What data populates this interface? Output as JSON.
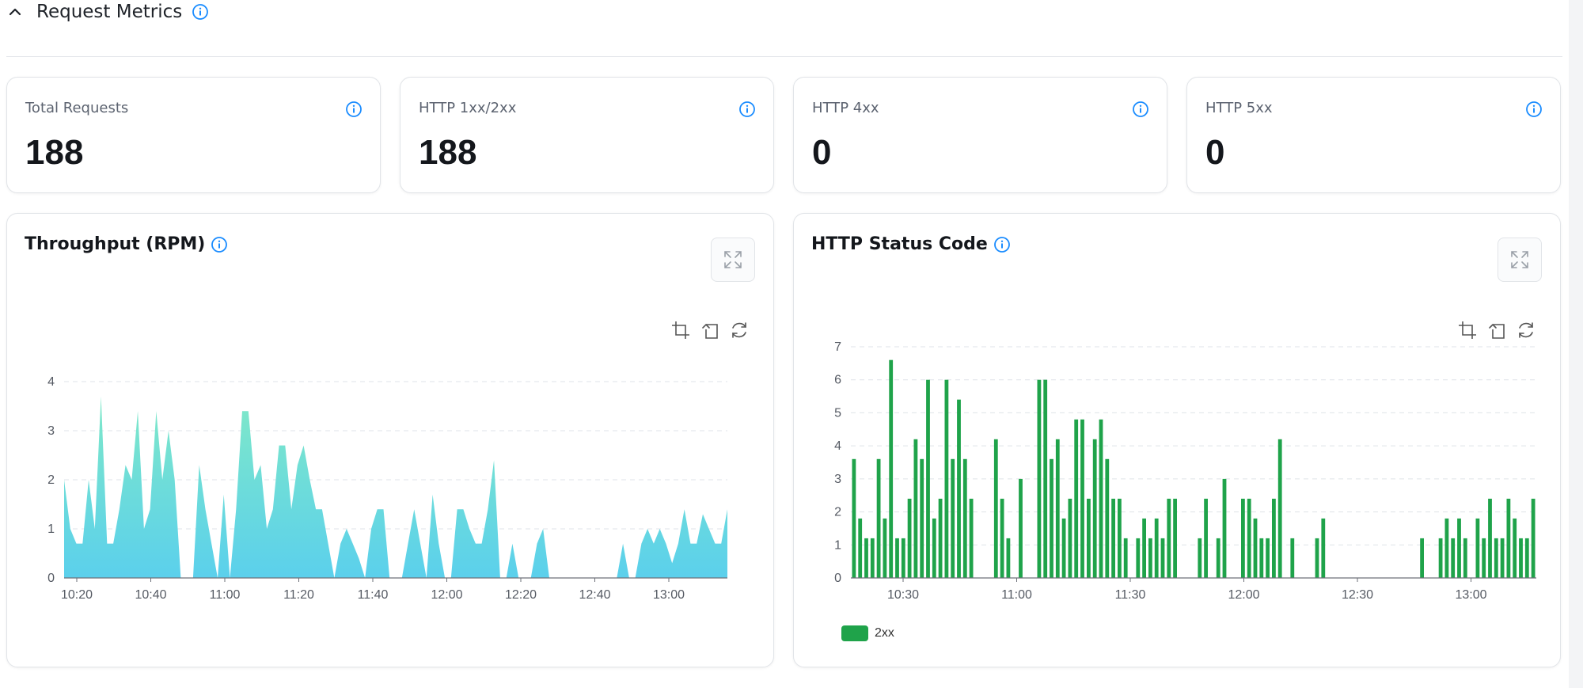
{
  "section": {
    "title": "Request Metrics"
  },
  "stats": [
    {
      "label": "Total Requests",
      "value": "188"
    },
    {
      "label": "HTTP 1xx/2xx",
      "value": "188"
    },
    {
      "label": "HTTP 4xx",
      "value": "0"
    },
    {
      "label": "HTTP 5xx",
      "value": "0"
    }
  ],
  "colors": {
    "accent": "#1a8cff",
    "bar": "#1fa34a",
    "area_top": "#7fe8c8",
    "area_bottom": "#5bd0ec"
  },
  "throughput": {
    "title": "Throughput (RPM)",
    "chart_data": {
      "type": "area",
      "title": "Throughput (RPM)",
      "x_ticks": [
        "10:20",
        "10:40",
        "11:00",
        "11:20",
        "11:40",
        "12:00",
        "12:20",
        "12:40",
        "13:00"
      ],
      "y_ticks": [
        0,
        1,
        2,
        3,
        4
      ],
      "ylim": [
        0,
        4
      ],
      "grid": true,
      "series": [
        {
          "values": [
            2,
            1,
            0.7,
            0.7,
            2,
            1,
            3.7,
            0.7,
            0.7,
            1.4,
            2.3,
            2,
            3.4,
            1,
            1.4,
            3.4,
            2,
            3,
            2,
            0,
            0,
            0,
            2.3,
            1.4,
            0.7,
            0,
            1.7,
            0,
            1.4,
            3.4,
            3.4,
            2,
            2.3,
            1,
            1.4,
            2.7,
            2.7,
            1.4,
            2.3,
            2.7,
            2,
            1.4,
            1.4,
            0.7,
            0,
            0.7,
            1,
            0.7,
            0.4,
            0,
            1,
            1.4,
            1.4,
            0,
            0,
            0,
            0.7,
            1.4,
            0.7,
            0,
            1.7,
            0.7,
            0,
            0,
            1.4,
            1.4,
            1,
            0.7,
            0.7,
            1.4,
            2.4,
            0,
            0,
            0.7,
            0,
            0,
            0,
            0.7,
            1,
            0,
            0,
            0,
            0,
            0,
            0,
            0,
            0,
            0,
            0,
            0,
            0,
            0.7,
            0,
            0,
            0.7,
            1,
            0.7,
            1,
            0.7,
            0.3,
            0.7,
            1.4,
            0.7,
            0.7,
            1.3,
            1,
            0.7,
            0.7,
            1.4
          ]
        }
      ]
    }
  },
  "status_code": {
    "title": "HTTP Status Code",
    "chart_data": {
      "type": "bar",
      "title": "HTTP Status Code",
      "x_ticks": [
        "10:30",
        "11:00",
        "11:30",
        "12:00",
        "12:30",
        "13:00"
      ],
      "y_ticks": [
        0,
        1,
        2,
        3,
        4,
        5,
        6,
        7
      ],
      "ylim": [
        0,
        7
      ],
      "grid": true,
      "legend": "bottom-left",
      "series": [
        {
          "name": "2xx",
          "values": [
            3.6,
            1.8,
            1.2,
            1.2,
            3.6,
            1.8,
            6.6,
            1.2,
            1.2,
            2.4,
            4.2,
            3.6,
            6,
            1.8,
            2.4,
            6,
            3.6,
            5.4,
            3.6,
            2.4,
            0,
            0,
            0,
            4.2,
            2.4,
            1.2,
            0,
            3,
            0,
            0,
            6,
            6,
            3.6,
            4.2,
            1.8,
            2.4,
            4.8,
            4.8,
            2.4,
            4.2,
            4.8,
            3.6,
            2.4,
            2.4,
            1.2,
            0,
            1.2,
            1.8,
            1.2,
            1.8,
            1.2,
            2.4,
            2.4,
            0,
            0,
            0,
            1.2,
            2.4,
            0,
            1.2,
            3,
            0,
            0,
            2.4,
            2.4,
            1.8,
            1.2,
            1.2,
            2.4,
            4.2,
            0,
            1.2,
            0,
            0,
            0,
            1.2,
            1.8,
            0,
            0,
            0,
            0,
            0,
            0,
            0,
            0,
            0,
            0,
            0,
            0,
            0,
            0,
            0,
            1.2,
            0,
            0,
            1.2,
            1.8,
            1.2,
            1.8,
            1.2,
            0,
            1.8,
            1.2,
            2.4,
            1.2,
            1.2,
            2.4,
            1.8,
            1.2,
            1.2,
            2.4
          ]
        }
      ]
    }
  }
}
